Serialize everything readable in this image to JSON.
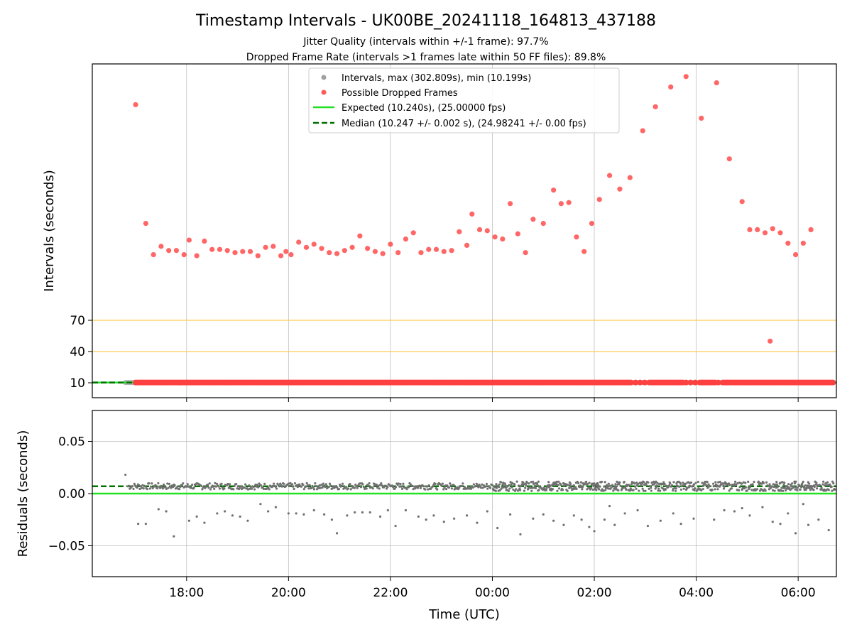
{
  "figure": {
    "title": "Timestamp Intervals - UK00BE_20241118_164813_437188",
    "subtitle1": "Jitter Quality (intervals within +/-1 frame): 97.7%",
    "subtitle2": "Dropped Frame Rate (intervals >1 frames late within 50 FF files): 89.8%"
  },
  "colors": {
    "intervals": "#a0a0a0",
    "dropped": "#ff4040",
    "expected": "#22e022",
    "median": "#007000",
    "threshold": "#ffcc55",
    "residuals": "#707070"
  },
  "chart_data": [
    {
      "type": "scatter",
      "panel": "top",
      "ylabel": "Intervals (seconds)",
      "xlabel": "",
      "x_unit": "hours since 16:00 UTC",
      "xlim": [
        16.15,
        30.75
      ],
      "y_ticks": [
        10,
        40,
        70
      ],
      "xtick_positions": [
        18,
        20,
        22,
        24,
        26,
        28,
        30
      ],
      "xtick_labels": [
        "18:00",
        "20:00",
        "22:00",
        "00:00",
        "02:00",
        "04:00",
        "06:00"
      ],
      "threshold_lines": [
        40,
        70
      ],
      "expected_value": 10.24,
      "median_value": 10.247,
      "baseline_range": [
        16.8,
        30.7
      ],
      "legend": {
        "intervals": "Intervals, max (302.809s), min (10.199s)",
        "dropped": "Possible Dropped Frames",
        "expected": "Expected (10.240s), (25.00000 fps)",
        "median": "Median (10.247 +/- 0.002 s), (24.98241 +/- 0.00 fps)"
      },
      "dropped_points": [
        [
          17.0,
          277
        ],
        [
          17.2,
          163
        ],
        [
          17.35,
          133
        ],
        [
          17.5,
          141
        ],
        [
          17.65,
          137
        ],
        [
          17.8,
          137
        ],
        [
          17.95,
          133
        ],
        [
          18.05,
          147
        ],
        [
          18.2,
          132
        ],
        [
          18.35,
          146
        ],
        [
          18.5,
          138
        ],
        [
          18.65,
          138
        ],
        [
          18.8,
          137
        ],
        [
          18.95,
          135
        ],
        [
          19.1,
          136
        ],
        [
          19.25,
          136
        ],
        [
          19.4,
          132
        ],
        [
          19.55,
          140
        ],
        [
          19.7,
          141
        ],
        [
          19.85,
          132
        ],
        [
          19.95,
          136
        ],
        [
          20.05,
          133
        ],
        [
          20.2,
          145
        ],
        [
          20.35,
          140
        ],
        [
          20.5,
          143
        ],
        [
          20.65,
          139
        ],
        [
          20.8,
          135
        ],
        [
          20.95,
          134
        ],
        [
          21.1,
          137
        ],
        [
          21.25,
          140
        ],
        [
          21.4,
          151
        ],
        [
          21.55,
          139
        ],
        [
          21.7,
          136
        ],
        [
          21.85,
          134
        ],
        [
          22.0,
          143
        ],
        [
          22.15,
          135
        ],
        [
          22.3,
          148
        ],
        [
          22.45,
          154
        ],
        [
          22.6,
          135
        ],
        [
          22.75,
          138
        ],
        [
          22.9,
          138
        ],
        [
          23.05,
          136
        ],
        [
          23.2,
          137
        ],
        [
          23.35,
          155
        ],
        [
          23.5,
          142
        ],
        [
          23.6,
          172
        ],
        [
          23.75,
          157
        ],
        [
          23.9,
          156
        ],
        [
          24.05,
          150
        ],
        [
          24.2,
          148
        ],
        [
          24.35,
          182
        ],
        [
          24.5,
          153
        ],
        [
          24.65,
          135
        ],
        [
          24.8,
          167
        ],
        [
          25.0,
          163
        ],
        [
          25.2,
          195
        ],
        [
          25.35,
          182
        ],
        [
          25.5,
          183
        ],
        [
          25.65,
          150
        ],
        [
          25.8,
          136
        ],
        [
          25.95,
          163
        ],
        [
          26.1,
          186
        ],
        [
          26.3,
          209
        ],
        [
          26.5,
          196
        ],
        [
          26.7,
          207
        ],
        [
          26.95,
          252
        ],
        [
          27.2,
          275
        ],
        [
          27.5,
          294
        ],
        [
          27.8,
          304
        ],
        [
          28.1,
          264
        ],
        [
          28.4,
          298
        ],
        [
          28.65,
          225
        ],
        [
          28.9,
          184
        ],
        [
          29.05,
          157
        ],
        [
          29.2,
          157
        ],
        [
          29.35,
          154
        ],
        [
          29.5,
          158
        ],
        [
          29.65,
          154
        ],
        [
          29.8,
          144
        ],
        [
          29.95,
          133
        ],
        [
          30.1,
          144
        ],
        [
          30.25,
          157
        ],
        [
          29.45,
          50
        ]
      ]
    },
    {
      "type": "scatter",
      "panel": "bottom",
      "ylabel": "Residuals (seconds)",
      "xlabel": "Time (UTC)",
      "ylim": [
        -0.08,
        0.08
      ],
      "y_ticks": [
        0.05,
        0.0,
        -0.05
      ],
      "y_tick_labels": [
        "0.05",
        "0.00",
        "−0.05"
      ],
      "median_residual": 0.007,
      "outlier_points": [
        [
          16.8,
          0.018
        ],
        [
          17.05,
          -0.029
        ],
        [
          17.2,
          -0.029
        ],
        [
          17.45,
          -0.015
        ],
        [
          17.6,
          -0.017
        ],
        [
          17.75,
          -0.041
        ],
        [
          18.05,
          -0.026
        ],
        [
          18.2,
          -0.022
        ],
        [
          18.35,
          -0.028
        ],
        [
          18.6,
          -0.019
        ],
        [
          18.75,
          -0.017
        ],
        [
          18.9,
          -0.021
        ],
        [
          19.05,
          -0.022
        ],
        [
          19.2,
          -0.026
        ],
        [
          19.45,
          -0.01
        ],
        [
          19.6,
          -0.017
        ],
        [
          19.75,
          -0.013
        ],
        [
          20.0,
          -0.019
        ],
        [
          20.15,
          -0.019
        ],
        [
          20.3,
          -0.02
        ],
        [
          20.5,
          -0.016
        ],
        [
          20.7,
          -0.02
        ],
        [
          20.85,
          -0.025
        ],
        [
          20.95,
          -0.038
        ],
        [
          21.15,
          -0.021
        ],
        [
          21.3,
          -0.018
        ],
        [
          21.45,
          -0.018
        ],
        [
          21.6,
          -0.018
        ],
        [
          21.8,
          -0.022
        ],
        [
          21.95,
          -0.016
        ],
        [
          22.1,
          -0.031
        ],
        [
          22.3,
          -0.016
        ],
        [
          22.55,
          -0.022
        ],
        [
          22.7,
          -0.025
        ],
        [
          22.85,
          -0.021
        ],
        [
          23.05,
          -0.027
        ],
        [
          23.25,
          -0.024
        ],
        [
          23.5,
          -0.021
        ],
        [
          23.7,
          -0.028
        ],
        [
          23.9,
          -0.017
        ],
        [
          24.1,
          -0.033
        ],
        [
          24.35,
          -0.02
        ],
        [
          24.55,
          -0.039
        ],
        [
          24.8,
          -0.024
        ],
        [
          25.0,
          -0.02
        ],
        [
          25.2,
          -0.026
        ],
        [
          25.4,
          -0.03
        ],
        [
          25.6,
          -0.021
        ],
        [
          25.75,
          -0.025
        ],
        [
          25.9,
          -0.032
        ],
        [
          26.0,
          -0.036
        ],
        [
          26.2,
          -0.025
        ],
        [
          26.4,
          -0.03
        ],
        [
          26.6,
          -0.019
        ],
        [
          26.85,
          -0.016
        ],
        [
          27.05,
          -0.031
        ],
        [
          27.3,
          -0.026
        ],
        [
          27.55,
          -0.019
        ],
        [
          27.7,
          -0.029
        ],
        [
          27.95,
          -0.024
        ],
        [
          28.35,
          -0.025
        ],
        [
          28.55,
          -0.016
        ],
        [
          28.75,
          -0.017
        ],
        [
          29.05,
          -0.021
        ],
        [
          29.3,
          -0.013
        ],
        [
          29.5,
          -0.027
        ],
        [
          29.65,
          -0.029
        ],
        [
          29.8,
          -0.019
        ],
        [
          29.95,
          -0.038
        ],
        [
          30.1,
          -0.01
        ],
        [
          30.2,
          -0.03
        ],
        [
          30.4,
          -0.025
        ],
        [
          30.6,
          -0.035
        ],
        [
          26.3,
          -0.012
        ],
        [
          28.9,
          -0.014
        ]
      ]
    }
  ]
}
